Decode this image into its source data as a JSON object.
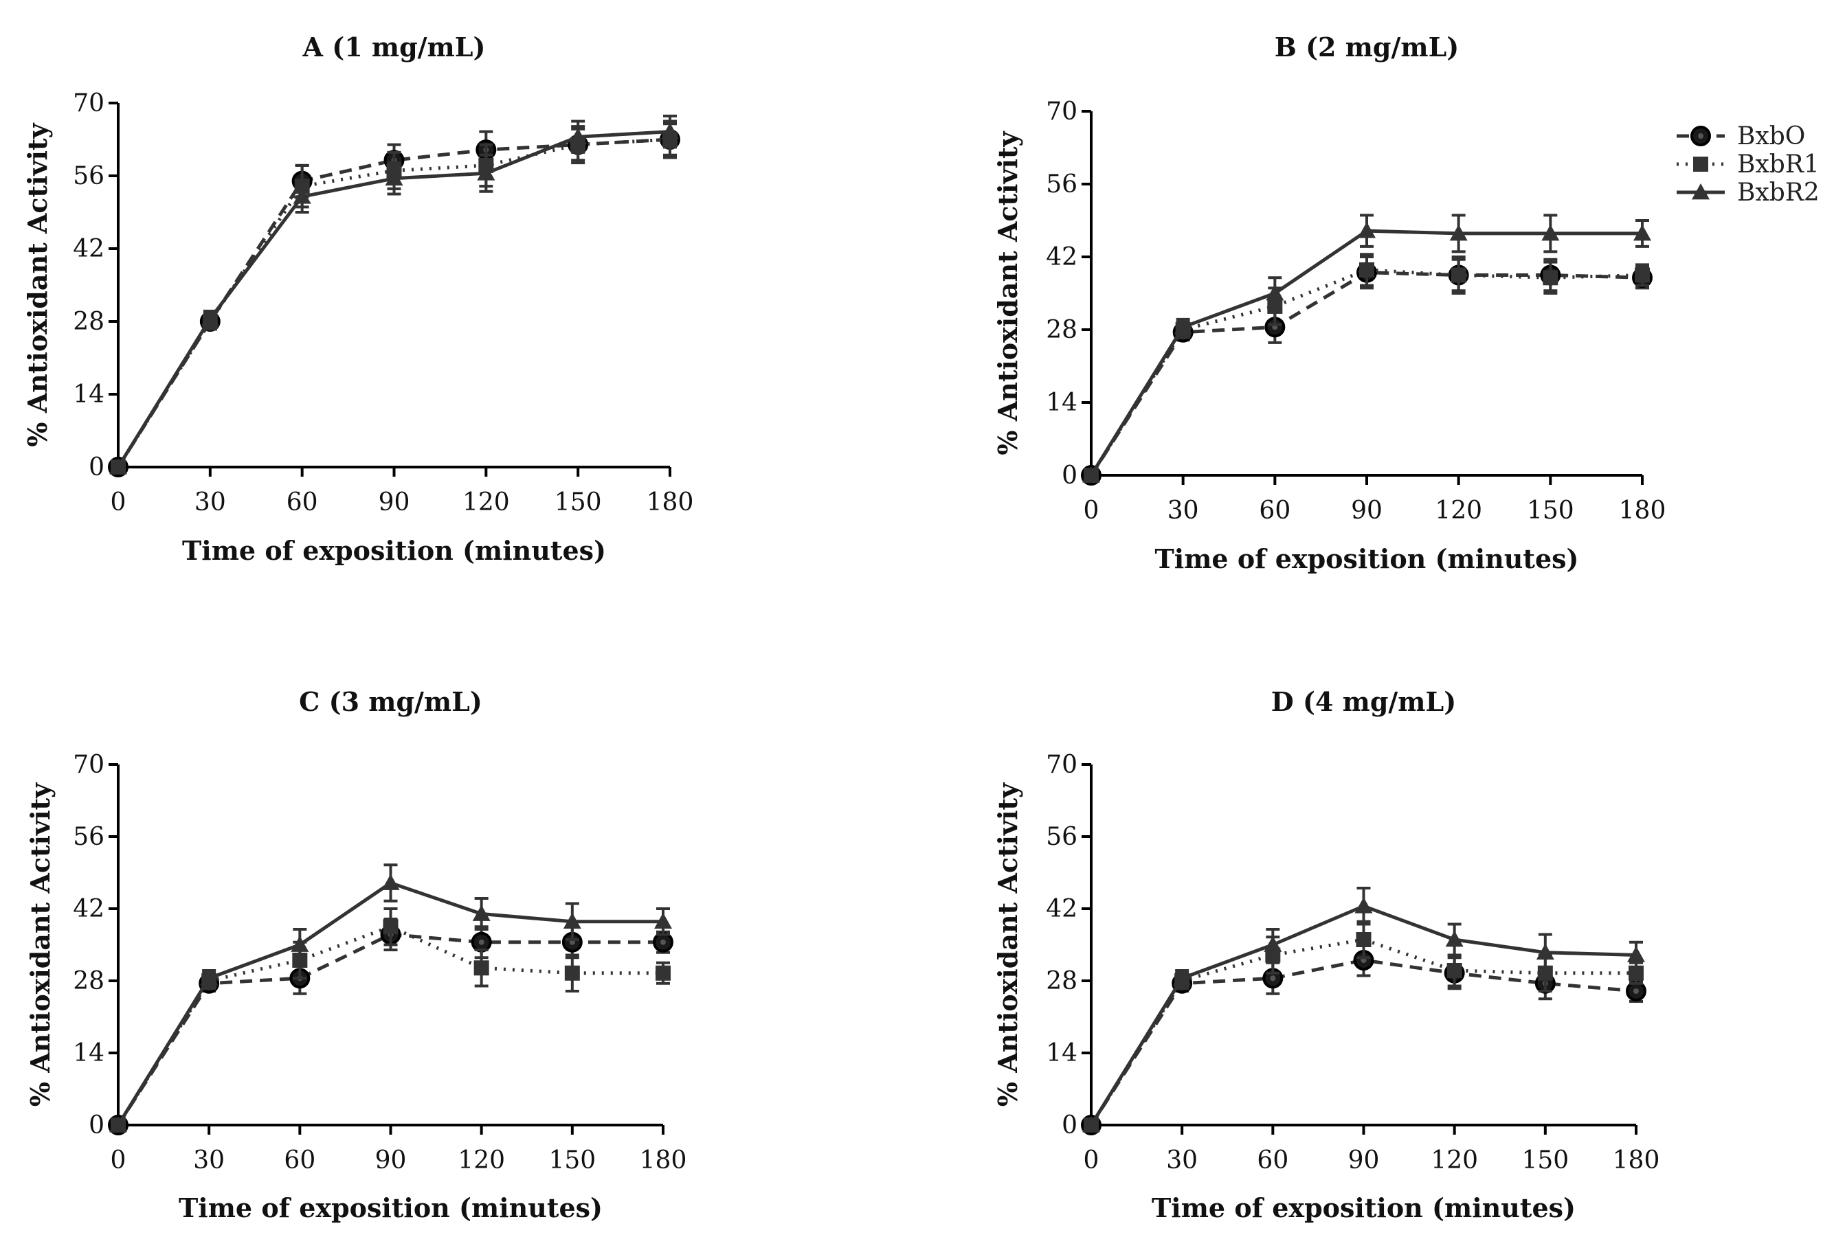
{
  "colors": {
    "series": "#333333",
    "marker": "#1a1a1a",
    "marker_ring": "#000000"
  },
  "chart_data": [
    {
      "type": "line",
      "title": "A (1 mg/mL)",
      "xlabel": "Time of exposition (minutes)",
      "ylabel": "% Antioxidant Activity",
      "x": [
        0,
        30,
        60,
        90,
        120,
        150,
        180
      ],
      "xlim": [
        0,
        180
      ],
      "ylim": [
        0,
        70
      ],
      "xticks": [
        "0",
        "30",
        "60",
        "90",
        "120",
        "150",
        "180"
      ],
      "yticks": [
        "0",
        "14",
        "28",
        "42",
        "56",
        "70"
      ],
      "series": [
        {
          "name": "BxbO",
          "values": [
            0,
            28,
            55,
            59,
            61,
            62,
            63
          ],
          "errors": [
            0,
            1.5,
            3,
            3,
            3.5,
            3,
            3
          ]
        },
        {
          "name": "BxbR1",
          "values": [
            0,
            28,
            54,
            57,
            58,
            62,
            63
          ],
          "errors": [
            0,
            1.5,
            4,
            3.5,
            4,
            3.5,
            3.5
          ]
        },
        {
          "name": "BxbR2",
          "values": [
            0,
            28.5,
            52,
            55.5,
            56.5,
            63.5,
            64.5
          ],
          "errors": [
            0,
            1.5,
            3,
            3,
            3.5,
            3,
            3
          ]
        }
      ]
    },
    {
      "type": "line",
      "title": "B (2 mg/mL)",
      "xlabel": "Time of exposition (minutes)",
      "ylabel": "% Antioxidant Activity",
      "x": [
        0,
        30,
        60,
        90,
        120,
        150,
        180
      ],
      "xlim": [
        0,
        180
      ],
      "ylim": [
        0,
        70
      ],
      "xticks": [
        "0",
        "30",
        "60",
        "90",
        "120",
        "150",
        "180"
      ],
      "yticks": [
        "0",
        "14",
        "28",
        "42",
        "56",
        "70"
      ],
      "series": [
        {
          "name": "BxbO",
          "values": [
            0,
            27.5,
            28.5,
            39,
            38.5,
            38.5,
            38
          ],
          "errors": [
            0,
            1.5,
            3,
            3,
            3,
            3,
            2
          ]
        },
        {
          "name": "BxbR1",
          "values": [
            0,
            28,
            32.5,
            39.5,
            38.5,
            38,
            38.5
          ],
          "errors": [
            0,
            1.5,
            3.5,
            3,
            3.5,
            3,
            2
          ]
        },
        {
          "name": "BxbR2",
          "values": [
            0,
            28.5,
            35,
            47,
            46.5,
            46.5,
            46.5
          ],
          "errors": [
            0,
            1.5,
            3,
            3,
            3.5,
            3.5,
            2.5
          ]
        }
      ]
    },
    {
      "type": "line",
      "title": "C (3 mg/mL)",
      "xlabel": "Time of exposition (minutes)",
      "ylabel": "% Antioxidant Activity",
      "x": [
        0,
        30,
        60,
        90,
        120,
        150,
        180
      ],
      "xlim": [
        0,
        180
      ],
      "ylim": [
        0,
        70
      ],
      "xticks": [
        "0",
        "30",
        "60",
        "90",
        "120",
        "150",
        "180"
      ],
      "yticks": [
        "0",
        "14",
        "28",
        "42",
        "56",
        "70"
      ],
      "series": [
        {
          "name": "BxbO",
          "values": [
            0,
            27.5,
            28.5,
            37,
            35.5,
            35.5,
            35.5
          ],
          "errors": [
            0,
            1.5,
            3,
            3,
            3,
            3,
            2
          ]
        },
        {
          "name": "BxbR1",
          "values": [
            0,
            28,
            32,
            38.5,
            30.5,
            29.5,
            29.5
          ],
          "errors": [
            0,
            1.5,
            3.5,
            3.5,
            3.5,
            3.5,
            2
          ]
        },
        {
          "name": "BxbR2",
          "values": [
            0,
            28.5,
            35,
            47,
            41,
            39.5,
            39.5
          ],
          "errors": [
            0,
            1.5,
            3,
            3.5,
            3,
            3.5,
            2.5
          ]
        }
      ]
    },
    {
      "type": "line",
      "title": "D (4 mg/mL)",
      "xlabel": "Time of exposition (minutes)",
      "ylabel": "% Antioxidant Activity",
      "x": [
        0,
        30,
        60,
        90,
        120,
        150,
        180
      ],
      "xlim": [
        0,
        180
      ],
      "ylim": [
        0,
        70
      ],
      "xticks": [
        "0",
        "30",
        "60",
        "90",
        "120",
        "150",
        "180"
      ],
      "yticks": [
        "0",
        "14",
        "28",
        "42",
        "56",
        "70"
      ],
      "legend": [
        "BxbO",
        "BxbR1",
        "BxbR2"
      ],
      "series": [
        {
          "name": "BxbO",
          "values": [
            0,
            27.5,
            28.5,
            32,
            29.5,
            27.5,
            26
          ],
          "errors": [
            0,
            1.5,
            3,
            3,
            3,
            3,
            2
          ]
        },
        {
          "name": "BxbR1",
          "values": [
            0,
            28,
            33,
            36,
            30,
            29.5,
            29.5
          ],
          "errors": [
            0,
            1.5,
            3.5,
            3.5,
            3,
            3.5,
            2
          ]
        },
        {
          "name": "BxbR2",
          "values": [
            0,
            28.5,
            35,
            42.5,
            36,
            33.5,
            33
          ],
          "errors": [
            0,
            1.5,
            3,
            3.5,
            3,
            3.5,
            2.5
          ]
        }
      ]
    }
  ]
}
